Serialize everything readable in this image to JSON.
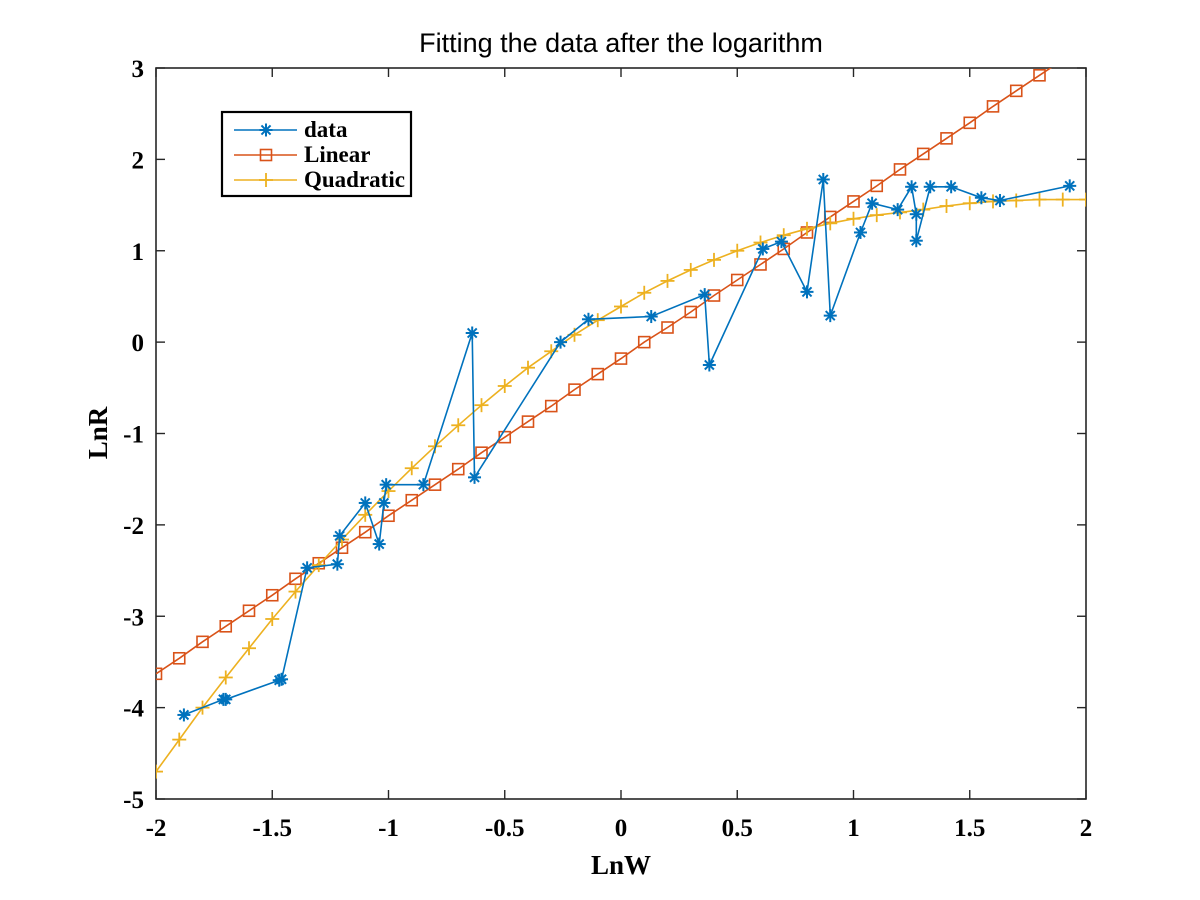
{
  "chart_data": {
    "type": "line",
    "title": "Fitting the data after the logarithm",
    "xlabel": "LnW",
    "ylabel": "LnR",
    "xlim": [
      -2,
      2
    ],
    "ylim": [
      -5,
      3
    ],
    "xticks": [
      -2,
      -1.5,
      -1,
      -0.5,
      0,
      0.5,
      1,
      1.5,
      2
    ],
    "yticks": [
      -5,
      -4,
      -3,
      -2,
      -1,
      0,
      1,
      2,
      3
    ],
    "xtick_labels": [
      "-2",
      "-1.5",
      "-1",
      "-0.5",
      "0",
      "0.5",
      "1",
      "1.5",
      "2"
    ],
    "ytick_labels": [
      "-5",
      "-4",
      "-3",
      "-2",
      "-1",
      "0",
      "1",
      "2",
      "3"
    ],
    "grid": false,
    "legend_position": "top-left",
    "series": [
      {
        "name": "data",
        "color": "#0072BD",
        "marker": "asterisk",
        "points": [
          [
            -1.88,
            -4.08
          ],
          [
            -1.71,
            -3.91
          ],
          [
            -1.7,
            -3.91
          ],
          [
            -1.47,
            -3.7
          ],
          [
            -1.46,
            -3.69
          ],
          [
            -1.35,
            -2.47
          ],
          [
            -1.22,
            -2.43
          ],
          [
            -1.21,
            -2.12
          ],
          [
            -1.1,
            -1.76
          ],
          [
            -1.04,
            -2.21
          ],
          [
            -1.02,
            -1.76
          ],
          [
            -1.01,
            -1.56
          ],
          [
            -0.85,
            -1.56
          ],
          [
            -0.64,
            0.1
          ],
          [
            -0.63,
            -1.48
          ],
          [
            -0.26,
            0.0
          ],
          [
            -0.14,
            0.25
          ],
          [
            0.13,
            0.28
          ],
          [
            0.36,
            0.52
          ],
          [
            0.38,
            -0.25
          ],
          [
            0.61,
            1.02
          ],
          [
            0.69,
            1.1
          ],
          [
            0.8,
            0.55
          ],
          [
            0.87,
            1.78
          ],
          [
            0.9,
            0.29
          ],
          [
            1.03,
            1.2
          ],
          [
            1.08,
            1.52
          ],
          [
            1.19,
            1.45
          ],
          [
            1.25,
            1.7
          ],
          [
            1.27,
            1.4
          ],
          [
            1.27,
            1.11
          ],
          [
            1.33,
            1.7
          ],
          [
            1.42,
            1.7
          ],
          [
            1.55,
            1.58
          ],
          [
            1.63,
            1.55
          ],
          [
            1.93,
            1.71
          ]
        ]
      },
      {
        "name": "Linear",
        "color": "#D95319",
        "marker": "square",
        "x": [
          -2,
          -1.9,
          -1.8,
          -1.7,
          -1.6,
          -1.5,
          -1.4,
          -1.3,
          -1.2,
          -1.1,
          -1,
          -0.9,
          -0.8,
          -0.7,
          -0.6,
          -0.5,
          -0.4,
          -0.3,
          -0.2,
          -0.1,
          0,
          0.1,
          0.2,
          0.3,
          0.4,
          0.5,
          0.6,
          0.7,
          0.8,
          0.9,
          1,
          1.1,
          1.2,
          1.3,
          1.4,
          1.5,
          1.6,
          1.7,
          1.8,
          1.9,
          2
        ],
        "y": [
          -3.63,
          -3.46,
          -3.28,
          -3.11,
          -2.94,
          -2.77,
          -2.59,
          -2.42,
          -2.25,
          -2.08,
          -1.9,
          -1.73,
          -1.56,
          -1.39,
          -1.21,
          -1.04,
          -0.87,
          -0.7,
          -0.52,
          -0.35,
          -0.18,
          0.0,
          0.16,
          0.33,
          0.51,
          0.68,
          0.85,
          1.02,
          1.2,
          1.37,
          1.54,
          1.71,
          1.89,
          2.06,
          2.23,
          2.4,
          2.58,
          2.75,
          2.92,
          3.09,
          3.27
        ]
      },
      {
        "name": "Quadratic",
        "color": "#EDB120",
        "marker": "plus",
        "x": [
          -2,
          -1.9,
          -1.8,
          -1.7,
          -1.6,
          -1.5,
          -1.4,
          -1.3,
          -1.2,
          -1.1,
          -1,
          -0.9,
          -0.8,
          -0.7,
          -0.6,
          -0.5,
          -0.4,
          -0.3,
          -0.2,
          -0.1,
          0,
          0.1,
          0.2,
          0.3,
          0.4,
          0.5,
          0.6,
          0.7,
          0.8,
          0.9,
          1,
          1.1,
          1.2,
          1.3,
          1.4,
          1.5,
          1.6,
          1.7,
          1.8,
          1.9,
          2
        ],
        "y": [
          -4.7,
          -4.35,
          -4.0,
          -3.67,
          -3.35,
          -3.03,
          -2.73,
          -2.44,
          -2.16,
          -1.89,
          -1.63,
          -1.38,
          -1.14,
          -0.91,
          -0.69,
          -0.48,
          -0.28,
          -0.1,
          0.08,
          0.24,
          0.39,
          0.54,
          0.67,
          0.79,
          0.9,
          1.0,
          1.09,
          1.17,
          1.24,
          1.3,
          1.35,
          1.39,
          1.42,
          1.45,
          1.49,
          1.52,
          1.54,
          1.55,
          1.56,
          1.56,
          1.56
        ]
      }
    ]
  }
}
